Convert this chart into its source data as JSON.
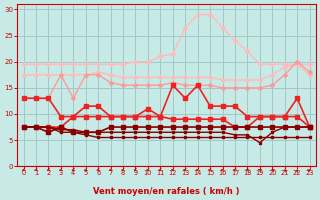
{
  "bg_color": "#c8eae6",
  "grid_color": "#a0c8c8",
  "xlabel": "Vent moyen/en rafales ( km/h )",
  "xlabel_color": "#cc0000",
  "tick_color": "#cc0000",
  "x_ticks": [
    0,
    1,
    2,
    3,
    4,
    5,
    6,
    7,
    8,
    9,
    10,
    11,
    12,
    13,
    14,
    15,
    16,
    17,
    18,
    19,
    20,
    21,
    22,
    23
  ],
  "y_ticks": [
    0,
    5,
    10,
    15,
    20,
    25,
    30
  ],
  "ylim": [
    0,
    31
  ],
  "xlim": [
    -0.5,
    23.5
  ],
  "series": [
    {
      "color": "#ffbbbb",
      "lw": 1.0,
      "marker": "D",
      "ms": 2.0,
      "data": [
        19.5,
        19.5,
        19.5,
        19.5,
        19.5,
        19.5,
        19.5,
        19.5,
        19.5,
        20.0,
        20.0,
        21.0,
        21.5,
        26.5,
        29.0,
        29.0,
        26.5,
        24.0,
        22.0,
        19.5,
        19.5,
        19.5,
        19.5,
        19.5
      ]
    },
    {
      "color": "#ffbbbb",
      "lw": 1.0,
      "marker": "D",
      "ms": 2.0,
      "data": [
        17.5,
        17.5,
        17.5,
        17.5,
        17.5,
        17.5,
        18.0,
        17.5,
        17.0,
        17.0,
        17.0,
        17.0,
        17.0,
        17.0,
        17.0,
        17.0,
        16.5,
        16.5,
        16.5,
        16.5,
        17.5,
        19.0,
        19.5,
        17.5
      ]
    },
    {
      "color": "#ff9999",
      "lw": 1.0,
      "marker": "D",
      "ms": 2.0,
      "data": [
        13.0,
        13.0,
        13.0,
        17.5,
        13.0,
        17.5,
        17.5,
        16.0,
        15.5,
        15.5,
        15.5,
        15.5,
        16.0,
        15.5,
        15.5,
        15.5,
        15.0,
        15.0,
        15.0,
        15.0,
        15.5,
        17.5,
        20.0,
        18.0
      ]
    },
    {
      "color": "#ee2222",
      "lw": 1.2,
      "marker": "s",
      "ms": 2.5,
      "data": [
        13.0,
        13.0,
        13.0,
        9.5,
        9.5,
        11.5,
        11.5,
        9.5,
        9.5,
        9.5,
        11.0,
        9.5,
        15.5,
        13.0,
        15.5,
        11.5,
        11.5,
        11.5,
        9.5,
        9.5,
        9.5,
        9.5,
        13.0,
        7.5
      ]
    },
    {
      "color": "#ee2222",
      "lw": 1.2,
      "marker": "s",
      "ms": 2.5,
      "data": [
        7.5,
        7.5,
        7.5,
        7.5,
        9.5,
        9.5,
        9.5,
        9.5,
        9.5,
        9.5,
        9.5,
        9.5,
        9.0,
        9.0,
        9.0,
        9.0,
        9.0,
        7.5,
        7.5,
        9.5,
        9.5,
        9.5,
        9.5,
        7.5
      ]
    },
    {
      "color": "#880000",
      "lw": 1.2,
      "marker": "s",
      "ms": 2.5,
      "data": [
        7.5,
        7.5,
        6.5,
        7.5,
        6.5,
        6.5,
        6.5,
        7.5,
        7.5,
        7.5,
        7.5,
        7.5,
        7.5,
        7.5,
        7.5,
        7.5,
        7.5,
        7.5,
        7.5,
        7.5,
        7.5,
        7.5,
        7.5,
        7.5
      ]
    },
    {
      "color": "#880000",
      "lw": 1.0,
      "marker": "s",
      "ms": 2.0,
      "data": [
        7.5,
        7.5,
        7.5,
        7.0,
        7.0,
        6.5,
        6.5,
        6.5,
        6.5,
        6.5,
        6.5,
        6.5,
        6.5,
        6.5,
        6.5,
        6.5,
        6.5,
        6.0,
        6.0,
        4.5,
        6.5,
        7.5,
        7.5,
        7.5
      ]
    },
    {
      "color": "#880000",
      "lw": 1.0,
      "marker": "s",
      "ms": 2.0,
      "data": [
        7.5,
        7.5,
        7.5,
        6.5,
        6.5,
        6.0,
        5.5,
        5.5,
        5.5,
        5.5,
        5.5,
        5.5,
        5.5,
        5.5,
        5.5,
        5.5,
        5.5,
        5.5,
        5.5,
        5.5,
        5.5,
        5.5,
        5.5,
        5.5
      ]
    }
  ],
  "wind_angles": [
    225,
    230,
    230,
    235,
    235,
    235,
    240,
    240,
    245,
    250,
    255,
    260,
    265,
    270,
    275,
    280,
    285,
    295,
    305,
    315,
    325,
    340,
    5,
    30
  ],
  "arrow_color": "#cc0000"
}
